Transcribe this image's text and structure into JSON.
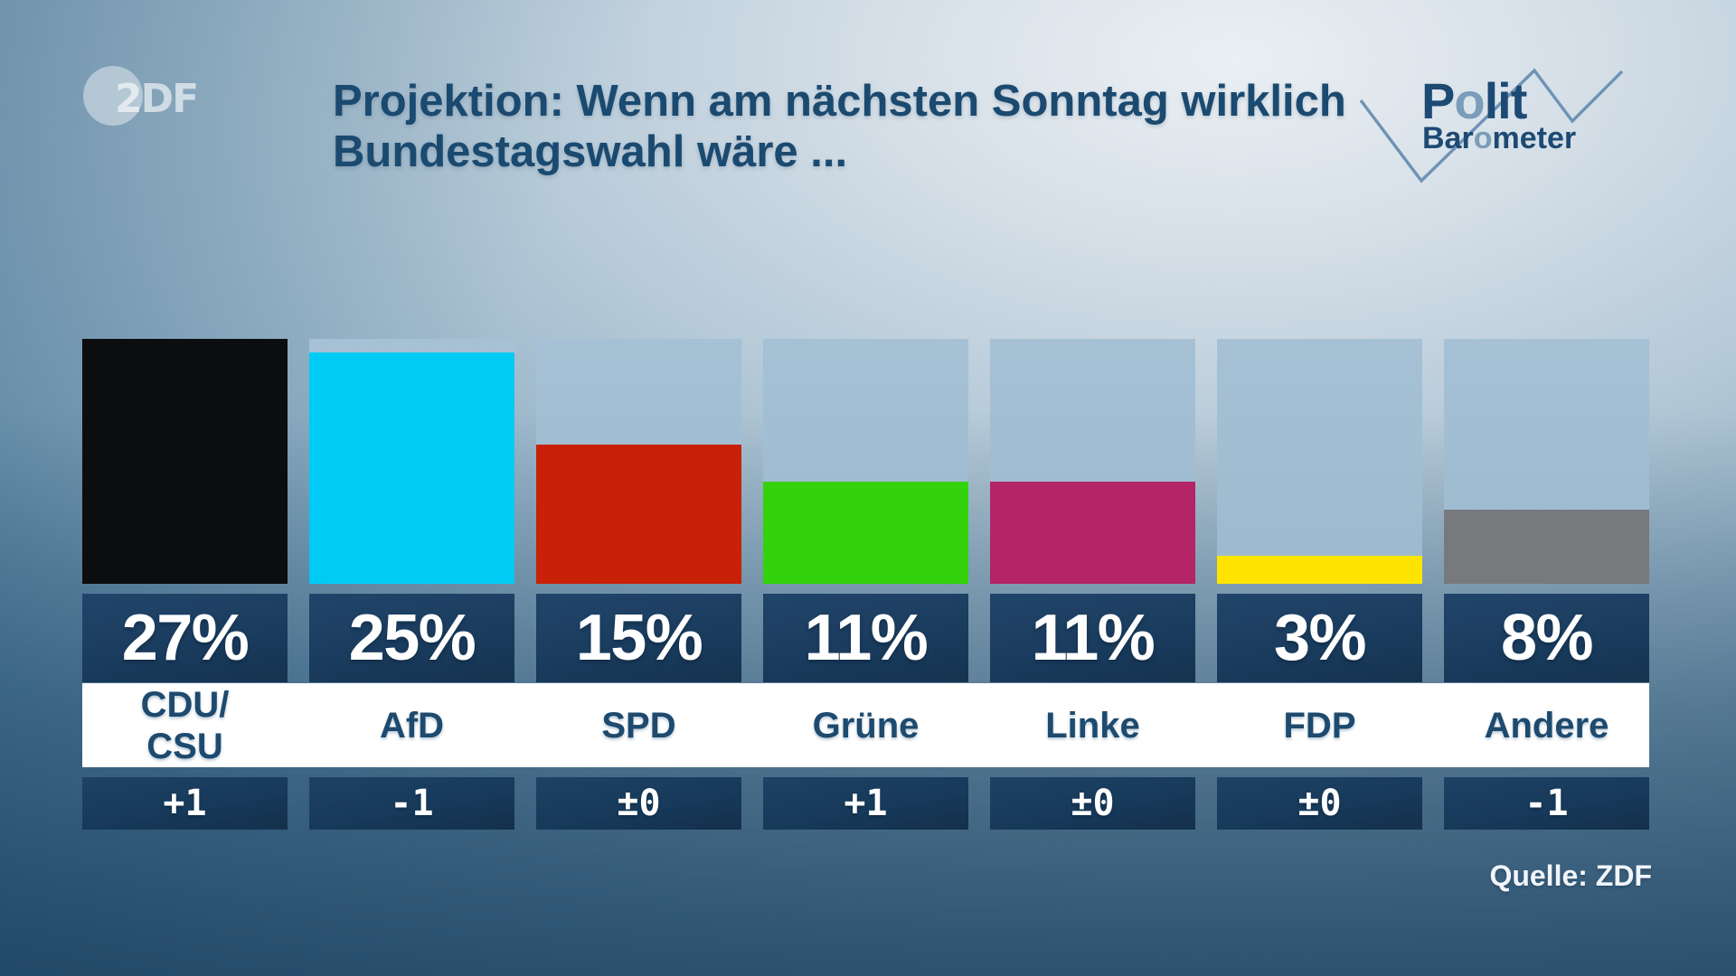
{
  "header": {
    "zdf_logo_text": "2DF",
    "title_line1": "Projektion: Wenn am nächsten Sonntag wirklich",
    "title_line2": "Bundestagswahl wäre ...",
    "brand": {
      "polit_p1": "P",
      "polit_o": "o",
      "polit_p2": "lit",
      "baro_p1": "Bar",
      "baro_o": "o",
      "baro_p2": "meter"
    }
  },
  "source_label": "Quelle: ZDF",
  "chart_data": {
    "type": "bar",
    "title": "Projektion: Wenn am nächsten Sonntag wirklich Bundestagswahl wäre ...",
    "categories": [
      "CDU/CSU",
      "AfD",
      "SPD",
      "Grüne",
      "Linke",
      "FDP",
      "Andere"
    ],
    "values": [
      27,
      25,
      15,
      11,
      11,
      3,
      8
    ],
    "unit": "%",
    "value_labels": [
      "27%",
      "25%",
      "15%",
      "11%",
      "11%",
      "3%",
      "8%"
    ],
    "changes": [
      "+1",
      "-1",
      "±0",
      "+1",
      "±0",
      "±0",
      "-1"
    ],
    "label_lines": [
      [
        "CDU/",
        "CSU"
      ],
      [
        "AfD"
      ],
      [
        "SPD"
      ],
      [
        "Grüne"
      ],
      [
        "Linke"
      ],
      [
        "FDP"
      ],
      [
        "Andere"
      ]
    ],
    "bar_colors": [
      "#0c0d0e",
      "#00cbf5",
      "#c92008",
      "#33d20c",
      "#b32566",
      "#ffe400",
      "#77797d"
    ],
    "track_color": "#a3bfd3",
    "ylim": [
      0,
      27
    ],
    "grid": false,
    "legend": "none",
    "source": "Quelle: ZDF"
  },
  "layout_colors": {
    "title_text": "#1b4a70",
    "label_band": "#ffffff",
    "label_text": "#1d4a6e",
    "value_box": "#1a3c5e",
    "change_box": "#173a5b",
    "logo_dark": "#1d4a73",
    "logo_light": "#7b9cba"
  }
}
